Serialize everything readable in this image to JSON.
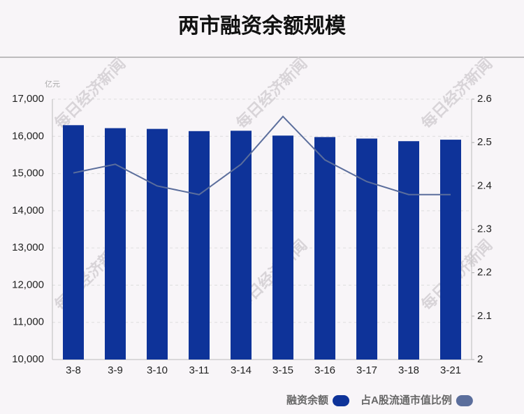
{
  "chart_data": {
    "type": "bar",
    "title": "两市融资余额规模",
    "y_unit": "亿元",
    "watermark": "每日经济新闻",
    "categories": [
      "3-8",
      "3-9",
      "3-10",
      "3-11",
      "3-14",
      "3-15",
      "3-16",
      "3-17",
      "3-18",
      "3-21"
    ],
    "series": [
      {
        "name": "融资余额",
        "type": "bar",
        "color": "#0e3399",
        "values": [
          16300,
          16220,
          16200,
          16140,
          16150,
          16020,
          15980,
          15940,
          15870,
          15910
        ]
      },
      {
        "name": "占A股流通市值比例",
        "type": "line",
        "axis": "y2",
        "color": "#5b6e9c",
        "values": [
          2.43,
          2.45,
          2.4,
          2.38,
          2.45,
          2.56,
          2.46,
          2.41,
          2.38,
          2.38
        ]
      }
    ],
    "ylim": [
      10000,
      17000
    ],
    "yticks": [
      {
        "value": 10000,
        "label": "10,000"
      },
      {
        "value": 11000,
        "label": "11,000"
      },
      {
        "value": 12000,
        "label": "12,000"
      },
      {
        "value": 13000,
        "label": "13,000"
      },
      {
        "value": 14000,
        "label": "14,000"
      },
      {
        "value": 15000,
        "label": "15,000"
      },
      {
        "value": 16000,
        "label": "16,000"
      },
      {
        "value": 17000,
        "label": "17,000"
      }
    ],
    "y2lim": [
      2,
      2.6
    ],
    "y2ticks": [
      2,
      2.1,
      2.2,
      2.3,
      2.4,
      2.5,
      2.6
    ],
    "grid": true,
    "legend": "bottom-right"
  }
}
